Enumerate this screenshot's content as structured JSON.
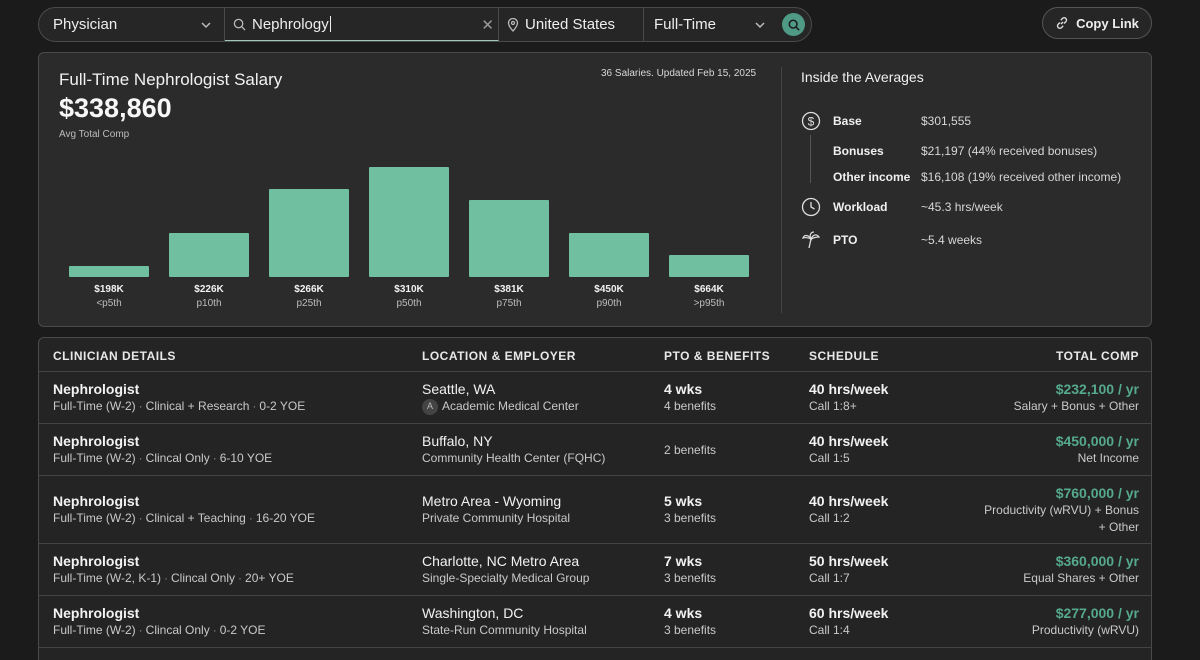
{
  "search": {
    "role": "Physician",
    "specialty": "Nephrology",
    "location": "United States",
    "employment": "Full-Time"
  },
  "copy_link": "Copy Link",
  "summary": {
    "title": "Full-Time Nephrologist Salary",
    "amount": "$338,860",
    "amount_label": "Avg Total Comp",
    "meta": "36 Salaries. Updated Feb 15, 2025"
  },
  "chart_data": {
    "type": "bar",
    "categories": [
      "<p5th",
      "p10th",
      "p25th",
      "p50th",
      "p75th",
      "p90th",
      ">p95th"
    ],
    "value_labels": [
      "$198K",
      "$226K",
      "$266K",
      "$310K",
      "$381K",
      "$450K",
      "$664K"
    ],
    "bar_heights_relative": [
      0.1,
      0.4,
      0.8,
      1.0,
      0.7,
      0.4,
      0.2
    ],
    "color": "#6fbfa0"
  },
  "averages": {
    "title": "Inside the Averages",
    "rows": [
      {
        "icon": "dollar-circle-icon",
        "label": "Base",
        "value": "$301,555"
      },
      {
        "icon": "",
        "label": "Bonuses",
        "value": "$21,197 (44% received bonuses)"
      },
      {
        "icon": "",
        "label": "Other income",
        "value": "$16,108 (19% received other income)"
      },
      {
        "icon": "clock-icon",
        "label": "Workload",
        "value": "~45.3 hrs/week"
      },
      {
        "icon": "palm-tree-icon",
        "label": "PTO",
        "value": "~5.4 weeks"
      }
    ]
  },
  "table": {
    "headers": [
      "CLINICIAN DETAILS",
      "LOCATION & EMPLOYER",
      "PTO & BENEFITS",
      "SCHEDULE",
      "TOTAL COMP"
    ],
    "rows": [
      {
        "role": "Nephrologist",
        "details": [
          "Full-Time (W-2)",
          "Clinical + Research",
          "0-2 YOE"
        ],
        "location": "Seattle, WA",
        "employer_badge": "A",
        "employer": "Academic Medical Center",
        "pto": "4 wks",
        "benefits": "4 benefits",
        "hours": "40 hrs/week",
        "call": "Call 1:8+",
        "comp": "$232,100 / yr",
        "comp_type": "Salary + Bonus + Other"
      },
      {
        "role": "Nephrologist",
        "details": [
          "Full-Time (W-2)",
          "Clincal Only",
          "6-10 YOE"
        ],
        "location": "Buffalo, NY",
        "employer_badge": "",
        "employer": "Community Health Center (FQHC)",
        "pto": "",
        "benefits": "2 benefits",
        "hours": "40 hrs/week",
        "call": "Call 1:5",
        "comp": "$450,000 / yr",
        "comp_type": "Net Income"
      },
      {
        "role": "Nephrologist",
        "details": [
          "Full-Time (W-2)",
          "Clinical + Teaching",
          "16-20 YOE"
        ],
        "location": "Metro Area - Wyoming",
        "employer_badge": "",
        "employer": "Private Community Hospital",
        "pto": "5 wks",
        "benefits": "3 benefits",
        "hours": "40 hrs/week",
        "call": "Call 1:2",
        "comp": "$760,000 / yr",
        "comp_type": "Productivity (wRVU) + Bonus",
        "comp_type_2": "+ Other"
      },
      {
        "role": "Nephrologist",
        "details": [
          "Full-Time (W-2, K-1)",
          "Clincal Only",
          "20+ YOE"
        ],
        "location": "Charlotte, NC Metro Area",
        "employer_badge": "",
        "employer": "Single-Specialty Medical Group",
        "pto": "7 wks",
        "benefits": "3 benefits",
        "hours": "50 hrs/week",
        "call": "Call 1:7",
        "comp": "$360,000 / yr",
        "comp_type": "Equal Shares + Other"
      },
      {
        "role": "Nephrologist",
        "details": [
          "Full-Time (W-2)",
          "Clincal Only",
          "0-2 YOE"
        ],
        "location": "Washington, DC",
        "employer_badge": "",
        "employer": "State-Run Community Hospital",
        "pto": "4 wks",
        "benefits": "3 benefits",
        "hours": "60 hrs/week",
        "call": "Call 1:4",
        "comp": "$277,000 / yr",
        "comp_type": "Productivity (wRVU)"
      }
    ]
  }
}
